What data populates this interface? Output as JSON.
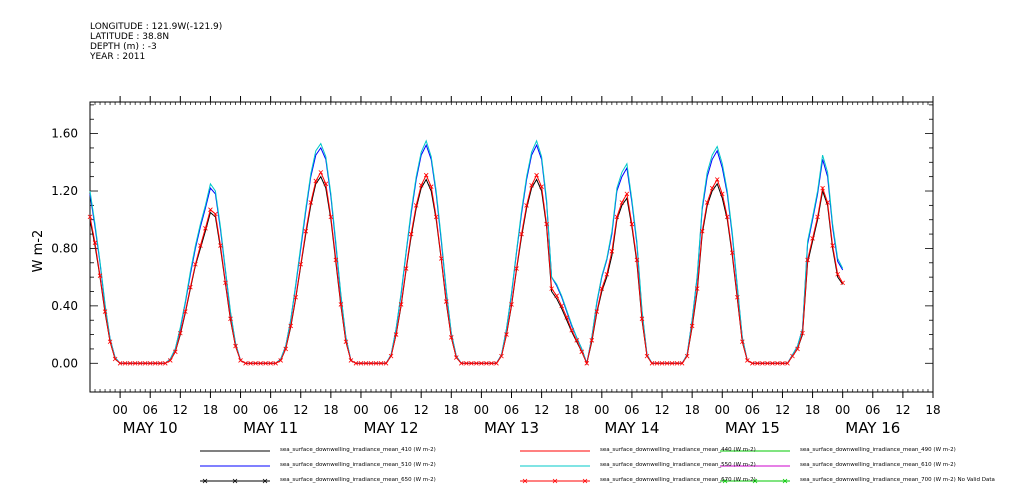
{
  "header": [
    "LONGITUDE : 121.9W(-121.9)",
    "LATITUDE : 38.8N",
    "DEPTH (m) : -3",
    "YEAR : 2011"
  ],
  "chart_data": {
    "type": "line",
    "title": "",
    "ylabel": "W m-2",
    "xlabel": "",
    "ylim": [
      -0.2,
      1.82
    ],
    "yticks": [
      "0.00",
      "0.40",
      "0.80",
      "1.20",
      "1.60"
    ],
    "ytick_values": [
      0.0,
      0.4,
      0.8,
      1.2,
      1.6
    ],
    "xlim_hours": [
      -6,
      162
    ],
    "hour_ticks": [
      "00",
      "06",
      "12",
      "18",
      "00",
      "06",
      "12",
      "18",
      "00",
      "06",
      "12",
      "18",
      "00",
      "06",
      "12",
      "18",
      "00",
      "06",
      "12",
      "18",
      "00",
      "06",
      "12",
      "18",
      "00",
      "06",
      "12",
      "18"
    ],
    "hour_tick_values": [
      0,
      6,
      12,
      18,
      24,
      30,
      36,
      42,
      48,
      54,
      60,
      66,
      72,
      78,
      84,
      90,
      96,
      102,
      108,
      114,
      120,
      126,
      132,
      138,
      144,
      150,
      156,
      162
    ],
    "day_labels": [
      "MAY 10",
      "MAY 11",
      "MAY 12",
      "MAY 13",
      "MAY 14",
      "MAY 15",
      "MAY 16"
    ],
    "day_label_hours": [
      6,
      30,
      54,
      78,
      102,
      126,
      150
    ],
    "x_hours": [
      -6,
      -5,
      -4,
      -3,
      -2,
      -1,
      0,
      1,
      2,
      3,
      4,
      5,
      6,
      7,
      8,
      9,
      10,
      11,
      12,
      13,
      14,
      15,
      16,
      17,
      18,
      19,
      20,
      21,
      22,
      23,
      24,
      25,
      26,
      27,
      28,
      29,
      30,
      31,
      32,
      33,
      34,
      35,
      36,
      37,
      38,
      39,
      40,
      41,
      42,
      43,
      44,
      45,
      46,
      47,
      48,
      49,
      50,
      51,
      52,
      53,
      54,
      55,
      56,
      57,
      58,
      59,
      60,
      61,
      62,
      63,
      64,
      65,
      66,
      67,
      68,
      69,
      70,
      71,
      72,
      73,
      74,
      75,
      76,
      77,
      78,
      79,
      80,
      81,
      82,
      83,
      84,
      85,
      86,
      87,
      88,
      89,
      90,
      91,
      92,
      93,
      94,
      95,
      96,
      97,
      98,
      99,
      100,
      101,
      102,
      103,
      104,
      105,
      106,
      107,
      108,
      109,
      110,
      111,
      112,
      113,
      114,
      115,
      116,
      117,
      118,
      119,
      120,
      121,
      122,
      123,
      124,
      125,
      126,
      127,
      128,
      129,
      130,
      131,
      132,
      133,
      134,
      135,
      136,
      137,
      138,
      139,
      140,
      141,
      142,
      143,
      144,
      145,
      146,
      147,
      148,
      149,
      150,
      151,
      152,
      153,
      154,
      155,
      156,
      157,
      158,
      159,
      160,
      161,
      162
    ],
    "series": [
      {
        "name": "sea_surface_downwelling_irradiance_mean_410 (W m-2)",
        "color": "#000000",
        "marker": "none",
        "values": [
          1.0,
          0.82,
          0.6,
          0.35,
          0.15,
          0.03,
          0,
          0,
          0,
          0,
          0,
          0,
          0,
          0,
          0,
          0,
          0.02,
          0.08,
          0.2,
          0.35,
          0.52,
          0.68,
          0.8,
          0.92,
          1.05,
          1.02,
          0.8,
          0.55,
          0.3,
          0.12,
          0.02,
          0,
          0,
          0,
          0,
          0,
          0,
          0,
          0.02,
          0.1,
          0.25,
          0.45,
          0.68,
          0.9,
          1.1,
          1.25,
          1.3,
          1.22,
          1.0,
          0.7,
          0.4,
          0.15,
          0.02,
          0,
          0,
          0,
          0,
          0,
          0,
          0,
          0.05,
          0.2,
          0.4,
          0.65,
          0.88,
          1.08,
          1.22,
          1.28,
          1.2,
          1.0,
          0.72,
          0.42,
          0.18,
          0.04,
          0,
          0,
          0,
          0,
          0,
          0,
          0,
          0,
          0.05,
          0.2,
          0.4,
          0.65,
          0.88,
          1.08,
          1.22,
          1.28,
          1.2,
          0.95,
          0.5,
          0.45,
          0.38,
          0.3,
          0.22,
          0.15,
          0.08,
          0,
          0.15,
          0.35,
          0.5,
          0.6,
          0.75,
          1.0,
          1.1,
          1.15,
          0.95,
          0.7,
          0.3,
          0.05,
          0,
          0,
          0,
          0,
          0,
          0,
          0,
          0.05,
          0.25,
          0.5,
          0.9,
          1.1,
          1.2,
          1.25,
          1.15,
          1.0,
          0.75,
          0.45,
          0.15,
          0.02,
          0,
          0,
          0,
          0,
          0,
          0,
          0,
          0,
          0.05,
          0.1,
          0.2,
          0.7,
          0.85,
          1.0,
          1.2,
          1.1,
          0.8,
          0.6,
          0.55
        ]
      },
      {
        "name": "sea_surface_downwelling_irradiance_mean_510 (W m-2)",
        "color": "#0000ff",
        "marker": "none",
        "values": [
          1.18,
          0.95,
          0.7,
          0.4,
          0.17,
          0.04,
          0,
          0,
          0,
          0,
          0,
          0,
          0,
          0,
          0,
          0,
          0.03,
          0.1,
          0.24,
          0.42,
          0.62,
          0.8,
          0.95,
          1.08,
          1.22,
          1.18,
          0.93,
          0.64,
          0.35,
          0.14,
          0.02,
          0,
          0,
          0,
          0,
          0,
          0,
          0,
          0.03,
          0.12,
          0.3,
          0.54,
          0.8,
          1.06,
          1.3,
          1.45,
          1.5,
          1.42,
          1.16,
          0.82,
          0.47,
          0.18,
          0.02,
          0,
          0,
          0,
          0,
          0,
          0,
          0,
          0.06,
          0.24,
          0.48,
          0.77,
          1.04,
          1.28,
          1.45,
          1.52,
          1.42,
          1.18,
          0.85,
          0.5,
          0.21,
          0.05,
          0,
          0,
          0,
          0,
          0,
          0,
          0,
          0,
          0.06,
          0.24,
          0.48,
          0.77,
          1.04,
          1.28,
          1.45,
          1.52,
          1.42,
          1.12,
          0.6,
          0.54,
          0.46,
          0.36,
          0.26,
          0.18,
          0.1,
          0,
          0.18,
          0.42,
          0.6,
          0.72,
          0.9,
          1.2,
          1.3,
          1.36,
          1.12,
          0.83,
          0.36,
          0.06,
          0,
          0,
          0,
          0,
          0,
          0,
          0,
          0.06,
          0.3,
          0.6,
          1.07,
          1.3,
          1.42,
          1.48,
          1.36,
          1.18,
          0.89,
          0.53,
          0.18,
          0.02,
          0,
          0,
          0,
          0,
          0,
          0,
          0,
          0,
          0.06,
          0.12,
          0.24,
          0.83,
          1.0,
          1.18,
          1.42,
          1.3,
          0.95,
          0.71,
          0.65
        ]
      },
      {
        "name": "sea_surface_downwelling_irradiance_mean_550 (W m-2)",
        "color": "#00c8c8",
        "marker": "none",
        "values": [
          1.2,
          0.97,
          0.71,
          0.41,
          0.17,
          0.04,
          0,
          0,
          0,
          0,
          0,
          0,
          0,
          0,
          0,
          0,
          0.03,
          0.1,
          0.25,
          0.43,
          0.64,
          0.82,
          0.97,
          1.1,
          1.25,
          1.2,
          0.95,
          0.65,
          0.36,
          0.14,
          0.02,
          0,
          0,
          0,
          0,
          0,
          0,
          0,
          0.03,
          0.12,
          0.3,
          0.55,
          0.82,
          1.08,
          1.32,
          1.48,
          1.53,
          1.44,
          1.18,
          0.84,
          0.48,
          0.18,
          0.02,
          0,
          0,
          0,
          0,
          0,
          0,
          0,
          0.06,
          0.24,
          0.49,
          0.78,
          1.06,
          1.3,
          1.47,
          1.55,
          1.44,
          1.2,
          0.87,
          0.51,
          0.21,
          0.05,
          0,
          0,
          0,
          0,
          0,
          0,
          0,
          0,
          0.06,
          0.24,
          0.49,
          0.78,
          1.06,
          1.3,
          1.47,
          1.55,
          1.44,
          1.14,
          0.6,
          0.55,
          0.47,
          0.37,
          0.27,
          0.18,
          0.1,
          0,
          0.18,
          0.43,
          0.61,
          0.73,
          0.92,
          1.22,
          1.33,
          1.39,
          1.14,
          0.85,
          0.37,
          0.06,
          0,
          0,
          0,
          0,
          0,
          0,
          0,
          0.06,
          0.3,
          0.61,
          1.09,
          1.33,
          1.45,
          1.51,
          1.39,
          1.2,
          0.91,
          0.54,
          0.18,
          0.02,
          0,
          0,
          0,
          0,
          0,
          0,
          0,
          0,
          0.06,
          0.12,
          0.24,
          0.85,
          1.02,
          1.2,
          1.45,
          1.33,
          0.97,
          0.73,
          0.66
        ]
      },
      {
        "name": "sea_surface_downwelling_irradiance_mean_670 (W m-2)",
        "color": "#ff0000",
        "marker": "x",
        "values": [
          1.02,
          0.84,
          0.61,
          0.36,
          0.15,
          0.03,
          0,
          0,
          0,
          0,
          0,
          0,
          0,
          0,
          0,
          0,
          0.02,
          0.08,
          0.21,
          0.36,
          0.53,
          0.69,
          0.82,
          0.94,
          1.07,
          1.04,
          0.82,
          0.56,
          0.31,
          0.12,
          0.02,
          0,
          0,
          0,
          0,
          0,
          0,
          0,
          0.02,
          0.1,
          0.26,
          0.46,
          0.69,
          0.92,
          1.12,
          1.27,
          1.33,
          1.25,
          1.02,
          0.72,
          0.41,
          0.15,
          0.02,
          0,
          0,
          0,
          0,
          0,
          0,
          0,
          0.05,
          0.2,
          0.41,
          0.66,
          0.9,
          1.1,
          1.24,
          1.31,
          1.23,
          1.02,
          0.73,
          0.43,
          0.18,
          0.04,
          0,
          0,
          0,
          0,
          0,
          0,
          0,
          0,
          0.05,
          0.2,
          0.41,
          0.66,
          0.9,
          1.1,
          1.24,
          1.31,
          1.23,
          0.97,
          0.52,
          0.47,
          0.4,
          0.32,
          0.23,
          0.16,
          0.08,
          0,
          0.16,
          0.36,
          0.52,
          0.62,
          0.78,
          1.02,
          1.12,
          1.18,
          0.97,
          0.72,
          0.31,
          0.05,
          0,
          0,
          0,
          0,
          0,
          0,
          0,
          0.05,
          0.26,
          0.52,
          0.92,
          1.12,
          1.22,
          1.28,
          1.18,
          1.02,
          0.77,
          0.46,
          0.15,
          0.02,
          0,
          0,
          0,
          0,
          0,
          0,
          0,
          0,
          0.05,
          0.1,
          0.21,
          0.72,
          0.87,
          1.02,
          1.22,
          1.12,
          0.82,
          0.62,
          0.56
        ]
      }
    ],
    "legend": [
      {
        "label": "sea_surface_downwelling_irradiance_mean_410 (W m-2)",
        "color": "#000000",
        "marker": "none"
      },
      {
        "label": "sea_surface_downwelling_irradiance_mean_440 (W m-2)",
        "color": "#ff0000",
        "marker": "none"
      },
      {
        "label": "sea_surface_downwelling_irradiance_mean_490 (W m-2)",
        "color": "#00c800",
        "marker": "none"
      },
      {
        "label": "sea_surface_downwelling_irradiance_mean_510 (W m-2)",
        "color": "#0000ff",
        "marker": "none"
      },
      {
        "label": "sea_surface_downwelling_irradiance_mean_550 (W m-2)",
        "color": "#00c8c8",
        "marker": "none"
      },
      {
        "label": "sea_surface_downwelling_irradiance_mean_610 (W m-2)",
        "color": "#cc00cc",
        "marker": "none"
      },
      {
        "label": "sea_surface_downwelling_irradiance_mean_650 (W m-2)",
        "color": "#000000",
        "marker": "x"
      },
      {
        "label": "sea_surface_downwelling_irradiance_mean_670 (W m-2)",
        "color": "#ff0000",
        "marker": "x"
      },
      {
        "label": "sea_surface_downwelling_irradiance_mean_700 (W m-2) No Valid Data",
        "color": "#00c800",
        "marker": "x"
      }
    ],
    "grid": false,
    "legend_position": "bottom"
  }
}
